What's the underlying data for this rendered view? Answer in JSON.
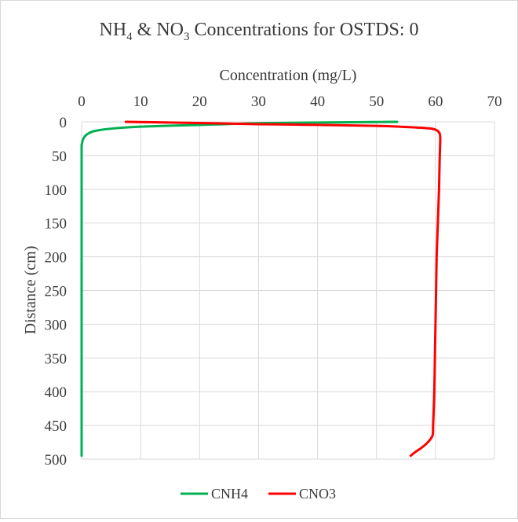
{
  "chart_data": {
    "type": "line",
    "title": {
      "part1": "NH",
      "sub1": "4",
      "part2": " & NO",
      "sub2": "3",
      "part3": " Concentrations for OSTDS: 0"
    },
    "xlabel": "Concentration (mg/L)",
    "ylabel": "Distance (cm)",
    "xlim": [
      0,
      70
    ],
    "ylim": [
      0,
      500
    ],
    "y_reversed": true,
    "x_axis_position": "top",
    "x_ticks": [
      "0",
      "10",
      "20",
      "30",
      "40",
      "50",
      "60",
      "70"
    ],
    "y_ticks": [
      "0",
      "50",
      "100",
      "150",
      "200",
      "250",
      "300",
      "350",
      "400",
      "450",
      "500"
    ],
    "grid": true,
    "legend": "bottom",
    "series": [
      {
        "name": "CNH4",
        "color": "#00b050",
        "points": [
          [
            53.5,
            0
          ],
          [
            40,
            1
          ],
          [
            30,
            2
          ],
          [
            22,
            4
          ],
          [
            14,
            6
          ],
          [
            8,
            8
          ],
          [
            4,
            11
          ],
          [
            2,
            14
          ],
          [
            1,
            18
          ],
          [
            0.5,
            22
          ],
          [
            0.2,
            27
          ],
          [
            0.05,
            33
          ],
          [
            0,
            40
          ],
          [
            0,
            100
          ],
          [
            0,
            200
          ],
          [
            0,
            300
          ],
          [
            0,
            400
          ],
          [
            0,
            495
          ]
        ]
      },
      {
        "name": "CNO3",
        "color": "#ff0000",
        "points": [
          [
            7.5,
            0
          ],
          [
            15,
            1
          ],
          [
            22,
            2
          ],
          [
            30,
            3.5
          ],
          [
            40,
            4.5
          ],
          [
            50,
            6
          ],
          [
            56,
            8
          ],
          [
            59.3,
            10
          ],
          [
            60.3,
            13
          ],
          [
            60.7,
            17
          ],
          [
            60.8,
            22
          ],
          [
            60.8,
            30
          ],
          [
            60.7,
            60
          ],
          [
            60.6,
            100
          ],
          [
            60.4,
            150
          ],
          [
            60.2,
            200
          ],
          [
            60.1,
            250
          ],
          [
            60.0,
            300
          ],
          [
            59.9,
            350
          ],
          [
            59.8,
            400
          ],
          [
            59.6,
            450
          ],
          [
            59.5,
            465
          ],
          [
            58.6,
            476
          ],
          [
            57.5,
            484
          ],
          [
            56.5,
            490
          ],
          [
            55.8,
            495
          ]
        ]
      }
    ]
  }
}
